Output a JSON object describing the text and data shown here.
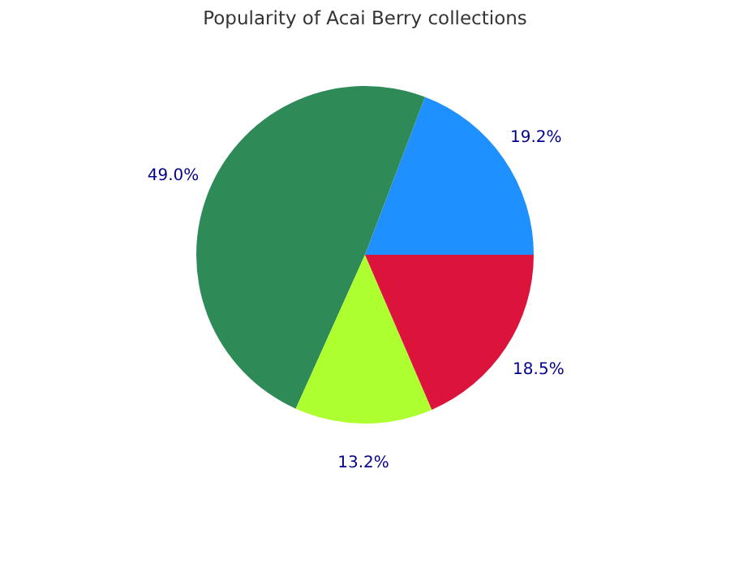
{
  "chart_data": {
    "type": "pie",
    "title": "Popularity of Acai Berry collections",
    "categories": [
      null,
      null,
      null,
      null
    ],
    "values": [
      19.2,
      49.0,
      13.2,
      18.5
    ],
    "value_labels": [
      "19.2%",
      "49.0%",
      "13.2%",
      "18.5%"
    ],
    "colors": [
      "#1e90ff",
      "#2e8b57",
      "#adff2f",
      "#dc143c"
    ]
  }
}
